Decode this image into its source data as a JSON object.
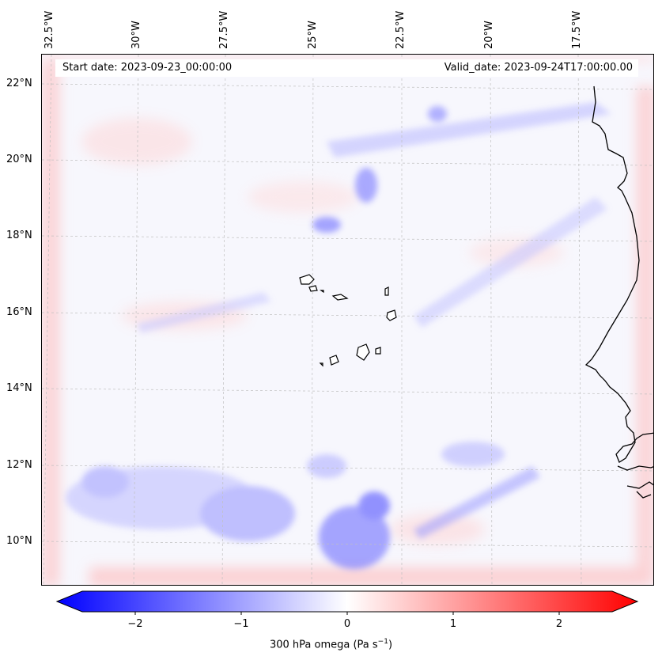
{
  "header": {
    "start_date": "Start date: 2023-09-23_00:00:00",
    "valid_date": "Valid_date: 2023-09-24T17:00:00.00"
  },
  "lon_labels": [
    "32.5°W",
    "30°W",
    "27.5°W",
    "25°W",
    "22.5°W",
    "20°W",
    "17.5°W"
  ],
  "lat_labels": [
    "22°N",
    "20°N",
    "18°N",
    "16°N",
    "14°N",
    "12°N",
    "10°N"
  ],
  "colorbar": {
    "ticks": [
      "−2",
      "−1",
      "0",
      "1",
      "2"
    ],
    "label": "300 hPa omega (Pa s",
    "label_sup": "−1",
    "label_end": ")",
    "min_color": "#0000ff",
    "mid_color": "#ffffff",
    "max_color": "#ff0000"
  },
  "colors": {
    "coastline": "#000000",
    "gridline": "#b0b0b0"
  }
}
